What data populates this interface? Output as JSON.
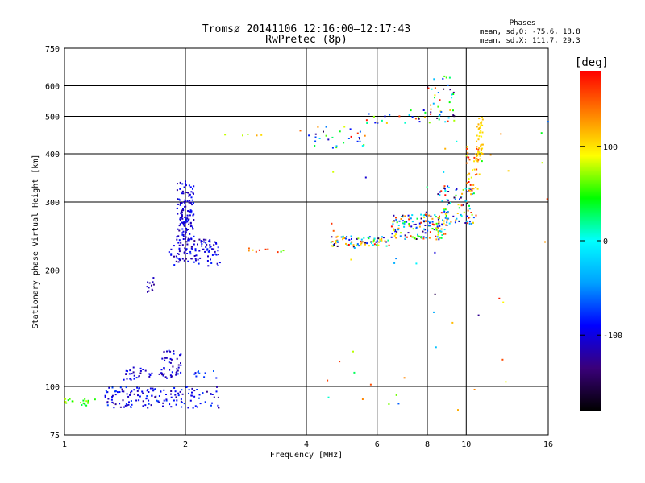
{
  "chart_data": {
    "type": "scatter",
    "title": "Tromsø 20141106 12:16:00–12:17:43",
    "subtitle": "RwPretec (8p)",
    "xlabel": "Frequency [MHz]",
    "ylabel": "Stationary phase Virtual Height [km]",
    "x_scale": "log",
    "y_scale": "log",
    "xlim": [
      1,
      16
    ],
    "ylim": [
      75,
      750
    ],
    "xticks": [
      1,
      2,
      4,
      6,
      8,
      10,
      16
    ],
    "yticks": [
      75,
      100,
      200,
      300,
      400,
      500,
      600,
      750
    ],
    "grid": true,
    "annotation": {
      "heading": "Phases",
      "line1": "mean, sd,O: -75.6, 18.8",
      "line2": "mean, sd,X: 111.7, 29.3"
    },
    "colorbar": {
      "label": "[deg]",
      "ticks": [
        100,
        0,
        -100
      ],
      "range": [
        -180,
        180
      ],
      "colors": [
        "#000000",
        "#3a007a",
        "#0000ff",
        "#00a0ff",
        "#00ffff",
        "#00ff00",
        "#ffff00",
        "#ff8000",
        "#ff0000"
      ]
    },
    "series": [
      {
        "clusters": [
          {
            "xrange": [
              1.0,
              1.15
            ],
            "yrange": [
              90,
              93
            ],
            "n": 14,
            "phase": [
              40,
              80
            ]
          },
          {
            "xrange": [
              1.1,
              1.2
            ],
            "yrange": [
              89,
              93
            ],
            "n": 6,
            "phase": [
              20,
              60
            ]
          },
          {
            "xrange": [
              1.25,
              2.45
            ],
            "yrange": [
              88,
              100
            ],
            "n": 150,
            "phase": [
              -130,
              -70
            ]
          },
          {
            "xrange": [
              1.4,
              1.95
            ],
            "yrange": [
              104,
              112
            ],
            "n": 50,
            "phase": [
              -130,
              -80
            ]
          },
          {
            "xrange": [
              1.75,
              1.95
            ],
            "yrange": [
              110,
              124
            ],
            "n": 25,
            "phase": [
              -130,
              -80
            ]
          },
          {
            "xrange": [
              2.0,
              2.45
            ],
            "yrange": [
              103,
              110
            ],
            "n": 10,
            "phase": [
              -100,
              -60
            ]
          },
          {
            "xrange": [
              1.6,
              1.67
            ],
            "yrange": [
              175,
              192
            ],
            "n": 12,
            "phase": [
              -130,
              -100
            ]
          },
          {
            "xrange": [
              1.82,
              2.45
            ],
            "yrange": [
              205,
              240
            ],
            "n": 110,
            "phase": [
              -130,
              -80
            ]
          },
          {
            "xrange": [
              1.9,
              2.1
            ],
            "yrange": [
              240,
              340
            ],
            "n": 130,
            "phase": [
              -130,
              -80
            ]
          },
          {
            "xrange": [
              2.8,
              3.7
            ],
            "yrange": [
              222,
              228
            ],
            "n": 10,
            "phase": [
              50,
              180
            ]
          },
          {
            "xrange": [
              2.5,
              3.2
            ],
            "yrange": [
              445,
              452
            ],
            "n": 5,
            "phase": [
              60,
              120
            ]
          },
          {
            "xrange": [
              3.8,
              5.6
            ],
            "yrange": [
              410,
              470
            ],
            "n": 30,
            "phase": [
              -160,
              180
            ]
          },
          {
            "xrange": [
              5.6,
              9.4
            ],
            "yrange": [
              480,
              520
            ],
            "n": 40,
            "phase": [
              -160,
              180
            ]
          },
          {
            "xrange": [
              8.0,
              9.5
            ],
            "yrange": [
              520,
              650
            ],
            "n": 25,
            "phase": [
              -160,
              180
            ]
          },
          {
            "xrange": [
              4.6,
              6.5
            ],
            "yrange": [
              230,
              245
            ],
            "n": 80,
            "phase": [
              -160,
              180
            ]
          },
          {
            "xrange": [
              6.5,
              9.0
            ],
            "yrange": [
              240,
              280
            ],
            "n": 150,
            "phase": [
              -160,
              180
            ]
          },
          {
            "xrange": [
              8.5,
              10.5
            ],
            "yrange": [
              260,
              330
            ],
            "n": 90,
            "phase": [
              -160,
              180
            ]
          },
          {
            "xrange": [
              10.0,
              10.8
            ],
            "yrange": [
              320,
              420
            ],
            "n": 40,
            "phase": [
              80,
              180
            ]
          },
          {
            "xrange": [
              10.6,
              11.0
            ],
            "yrange": [
              380,
              500
            ],
            "n": 45,
            "phase": [
              90,
              120
            ]
          },
          {
            "xrange": [
              4.4,
              12.8
            ],
            "yrange": [
              80,
              500
            ],
            "n": 45,
            "phase": [
              -160,
              180
            ]
          },
          {
            "xrange": [
              15.4,
              16.0
            ],
            "yrange": [
              215,
              580
            ],
            "n": 5,
            "phase": [
              -160,
              180
            ]
          }
        ]
      }
    ]
  }
}
